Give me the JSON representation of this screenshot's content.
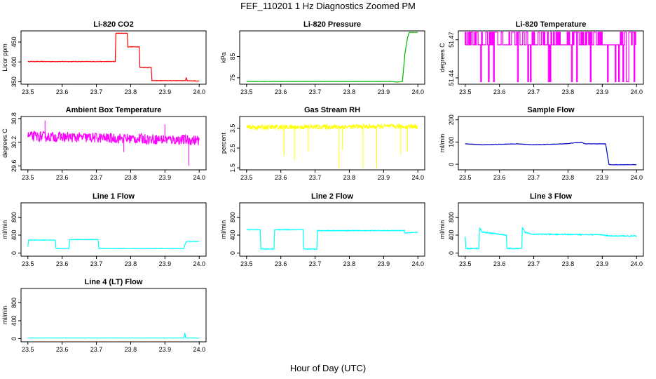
{
  "page": {
    "title": "FEF_110201  1 Hz Diagnostics Zoomed PM",
    "x_caption": "Hour of Day (UTC)"
  },
  "chart_data": [
    {
      "type": "line",
      "title": "Li-820 CO2",
      "ylabel": "Licor ppm",
      "color": "#ff0000",
      "xlim": [
        23.48,
        24.02
      ],
      "ylim": [
        344,
        478
      ],
      "xticks": [
        23.5,
        23.6,
        23.7,
        23.8,
        23.9,
        24.0
      ],
      "xtick_labels": [
        "23.5",
        "23.6",
        "23.7",
        "23.8",
        "23.9",
        "24.0"
      ],
      "yticks": [
        350,
        400,
        450
      ],
      "ytick_labels": [
        "350",
        "400",
        "450"
      ],
      "x": [
        23.5,
        23.755,
        23.757,
        23.79,
        23.792,
        23.825,
        23.827,
        23.86,
        23.862,
        23.96,
        23.962,
        23.965,
        24.0
      ],
      "y": [
        401,
        401,
        472,
        472,
        438,
        438,
        386,
        386,
        353,
        353,
        361,
        353,
        352
      ],
      "noise": 0.6
    },
    {
      "type": "line",
      "title": "Li-820 Pressure",
      "ylabel": "kPa",
      "color": "#00bb00",
      "xlim": [
        23.48,
        24.02
      ],
      "ylim": [
        72,
        97
      ],
      "xticks": [
        23.5,
        23.6,
        23.7,
        23.8,
        23.9,
        24.0
      ],
      "xtick_labels": [
        "23.5",
        "23.6",
        "23.7",
        "23.8",
        "23.9",
        "24.0"
      ],
      "yticks": [
        75,
        85
      ],
      "ytick_labels": [
        "75",
        "85"
      ],
      "x": [
        23.5,
        23.92,
        23.94,
        23.955,
        23.962,
        23.97,
        23.975,
        24.0
      ],
      "y": [
        73.3,
        73.3,
        73.0,
        73.3,
        86,
        94,
        96.3,
        96.3
      ],
      "noise": 0.05
    },
    {
      "type": "line",
      "title": "Li-820 Temperature",
      "ylabel": "degrees C",
      "color": "#ff00ff",
      "xlim": [
        23.48,
        24.02
      ],
      "ylim": [
        51.435,
        51.477
      ],
      "xticks": [
        23.5,
        23.6,
        23.7,
        23.8,
        23.9,
        24.0
      ],
      "xtick_labels": [
        "23.5",
        "23.6",
        "23.7",
        "23.8",
        "23.9",
        "24.0"
      ],
      "yticks": [
        51.44,
        51.47
      ],
      "ytick_labels": [
        "51.44",
        "51.47"
      ],
      "x": [
        23.5,
        24.0
      ],
      "y": [
        51.466,
        51.466
      ],
      "levels": [
        51.476,
        51.466,
        51.437
      ],
      "noise": 0
    },
    {
      "type": "line",
      "title": "Ambient Box Temperature",
      "ylabel": "degrees C",
      "color": "#ff00ff",
      "xlim": [
        23.48,
        24.02
      ],
      "ylim": [
        29.5,
        30.85
      ],
      "xticks": [
        23.5,
        23.6,
        23.7,
        23.8,
        23.9,
        24.0
      ],
      "xtick_labels": [
        "23.5",
        "23.6",
        "23.7",
        "23.8",
        "23.9",
        "24.0"
      ],
      "yticks": [
        29.6,
        30.2,
        30.8
      ],
      "ytick_labels": [
        "29.6",
        "30.2",
        "30.8"
      ],
      "x": [
        23.5,
        24.0
      ],
      "y": [
        30.35,
        30.25
      ],
      "noise": 0.13,
      "spikes": [
        [
          23.97,
          29.6
        ],
        [
          23.55,
          30.75
        ],
        [
          23.78,
          29.95
        ],
        [
          23.9,
          30.65
        ]
      ]
    },
    {
      "type": "line",
      "title": "Gas Stream RH",
      "ylabel": "percent",
      "color": "#ffff00",
      "xlim": [
        23.48,
        24.02
      ],
      "ylim": [
        1.4,
        4.1
      ],
      "xticks": [
        23.5,
        23.6,
        23.7,
        23.8,
        23.9,
        24.0
      ],
      "xtick_labels": [
        "23.5",
        "23.6",
        "23.7",
        "23.8",
        "23.9",
        "24.0"
      ],
      "yticks": [
        1.5,
        2.5,
        3.5
      ],
      "ytick_labels": [
        "1.5",
        "2.5",
        "3.5"
      ],
      "x": [
        23.5,
        24.0
      ],
      "y": [
        3.55,
        3.6
      ],
      "noise": 0.12,
      "spikes": [
        [
          23.61,
          2.1
        ],
        [
          23.64,
          1.9
        ],
        [
          23.68,
          2.3
        ],
        [
          23.77,
          1.5
        ],
        [
          23.78,
          2.4
        ],
        [
          23.84,
          1.5
        ],
        [
          23.88,
          1.5
        ],
        [
          23.95,
          2.2
        ],
        [
          23.97,
          2.3
        ]
      ]
    },
    {
      "type": "line",
      "title": "Sample Flow",
      "ylabel": "ml/min",
      "color": "#0000cc",
      "xlim": [
        23.48,
        24.02
      ],
      "ylim": [
        -25,
        215
      ],
      "xticks": [
        23.5,
        23.6,
        23.7,
        23.8,
        23.9,
        24.0
      ],
      "xtick_labels": [
        "23.5",
        "23.6",
        "23.7",
        "23.8",
        "23.9",
        "24.0"
      ],
      "yticks": [
        0,
        100,
        200
      ],
      "ytick_labels": [
        "0",
        "100",
        "200"
      ],
      "x": [
        23.5,
        23.55,
        23.6,
        23.65,
        23.7,
        23.75,
        23.8,
        23.82,
        23.84,
        23.85,
        23.91,
        23.915,
        23.92,
        24.0
      ],
      "y": [
        92,
        88,
        90,
        92,
        88,
        90,
        93,
        97,
        98,
        92,
        92,
        40,
        -2,
        -2
      ],
      "noise": 0.8
    },
    {
      "type": "line",
      "title": "Line 1 Flow",
      "ylabel": "ml/min",
      "color": "#00ffff",
      "xlim": [
        23.48,
        24.02
      ],
      "ylim": [
        -70,
        1120
      ],
      "xticks": [
        23.5,
        23.6,
        23.7,
        23.8,
        23.9,
        24.0
      ],
      "xtick_labels": [
        "23.5",
        "23.6",
        "23.7",
        "23.8",
        "23.9",
        "24.0"
      ],
      "yticks": [
        0,
        400,
        800
      ],
      "ytick_labels": [
        "0",
        "400",
        "800"
      ],
      "x": [
        23.5,
        23.502,
        23.58,
        23.582,
        23.62,
        23.622,
        23.705,
        23.707,
        23.955,
        23.96,
        23.965,
        24.0
      ],
      "y": [
        150,
        290,
        290,
        100,
        100,
        300,
        300,
        100,
        100,
        220,
        260,
        260
      ],
      "noise": 6
    },
    {
      "type": "line",
      "title": "Line 2 Flow",
      "ylabel": "ml/min",
      "color": "#00ffff",
      "xlim": [
        23.48,
        24.02
      ],
      "ylim": [
        -70,
        1120
      ],
      "xticks": [
        23.5,
        23.6,
        23.7,
        23.8,
        23.9,
        24.0
      ],
      "xtick_labels": [
        "23.5",
        "23.6",
        "23.7",
        "23.8",
        "23.9",
        "24.0"
      ],
      "yticks": [
        0,
        400,
        800
      ],
      "ytick_labels": [
        "0",
        "400",
        "800"
      ],
      "x": [
        23.5,
        23.54,
        23.542,
        23.58,
        23.582,
        23.665,
        23.667,
        23.705,
        23.707,
        23.96,
        23.962,
        24.0
      ],
      "y": [
        520,
        520,
        90,
        90,
        520,
        520,
        90,
        90,
        500,
        500,
        450,
        460
      ],
      "noise": 8
    },
    {
      "type": "line",
      "title": "Line 3 Flow",
      "ylabel": "ml/min",
      "color": "#00ffff",
      "xlim": [
        23.48,
        24.02
      ],
      "ylim": [
        -70,
        1120
      ],
      "xticks": [
        23.5,
        23.6,
        23.7,
        23.8,
        23.9,
        24.0
      ],
      "xtick_labels": [
        "23.5",
        "23.6",
        "23.7",
        "23.8",
        "23.9",
        "24.0"
      ],
      "yticks": [
        0,
        400,
        800
      ],
      "ytick_labels": [
        "0",
        "400",
        "800"
      ],
      "x": [
        23.5,
        23.502,
        23.54,
        23.542,
        23.55,
        23.58,
        23.62,
        23.622,
        23.665,
        23.667,
        23.675,
        23.7,
        23.9,
        23.92,
        24.0
      ],
      "y": [
        360,
        100,
        100,
        560,
        470,
        440,
        400,
        100,
        100,
        560,
        460,
        420,
        410,
        380,
        380
      ],
      "noise": 12
    },
    {
      "type": "line",
      "title": "Line 4 (LT) Flow",
      "ylabel": "ml/min",
      "color": "#00ffff",
      "xlim": [
        23.48,
        24.02
      ],
      "ylim": [
        -70,
        1120
      ],
      "xticks": [
        23.5,
        23.6,
        23.7,
        23.8,
        23.9,
        24.0
      ],
      "xtick_labels": [
        "23.5",
        "23.6",
        "23.7",
        "23.8",
        "23.9",
        "24.0"
      ],
      "yticks": [
        0,
        400,
        800
      ],
      "ytick_labels": [
        "0",
        "400",
        "800"
      ],
      "x": [
        23.5,
        23.955,
        23.958,
        23.961,
        24.0
      ],
      "y": [
        15,
        15,
        130,
        15,
        15
      ],
      "noise": 2
    }
  ]
}
